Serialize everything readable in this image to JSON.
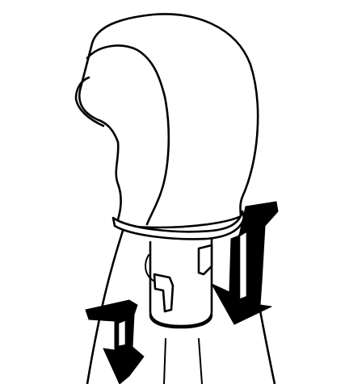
{
  "figure": {
    "subject": "shift-knob-removal",
    "parts": [
      "shift-knob",
      "retaining-collar",
      "shift-lever-boot",
      "shift-lever-shaft",
      "retaining-clip-left",
      "retaining-clip-right"
    ],
    "arrows": [
      {
        "name": "right-arrow",
        "direction": "down"
      },
      {
        "name": "left-arrow",
        "direction": "down"
      }
    ]
  }
}
